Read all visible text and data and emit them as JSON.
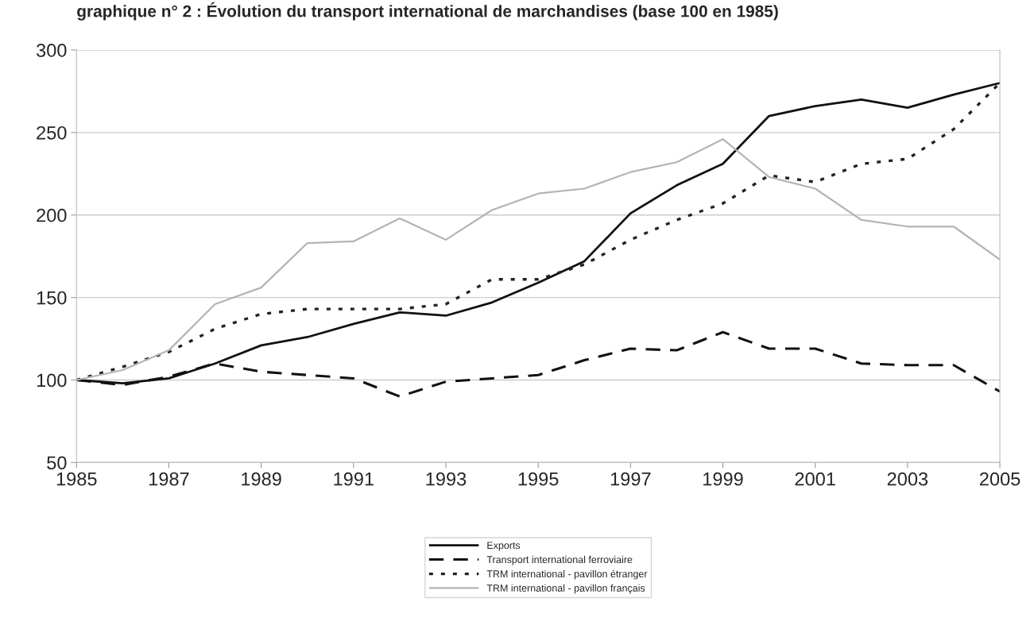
{
  "chart_data": {
    "type": "line",
    "title": "graphique n° 2 : Évolution du transport international de marchandises (base 100 en 1985)",
    "x": [
      1985,
      1986,
      1987,
      1988,
      1989,
      1990,
      1991,
      1992,
      1993,
      1994,
      1995,
      1996,
      1997,
      1998,
      1999,
      2000,
      2001,
      2002,
      2003,
      2004,
      2005
    ],
    "series": [
      {
        "name": "Exports",
        "color": "#111111",
        "line_style": "solid",
        "values": [
          100,
          98,
          101,
          110,
          121,
          126,
          134,
          141,
          139,
          147,
          159,
          172,
          201,
          218,
          231,
          260,
          266,
          270,
          265,
          273,
          280
        ]
      },
      {
        "name": "Transport international ferroviaire",
        "color": "#111111",
        "line_style": "dashed",
        "values": [
          100,
          97,
          102,
          110,
          105,
          103,
          101,
          90,
          99,
          101,
          103,
          112,
          119,
          118,
          129,
          119,
          119,
          110,
          109,
          109,
          93
        ]
      },
      {
        "name": "TRM international - pavillon étranger",
        "color": "#222222",
        "line_style": "dotted",
        "values": [
          100,
          108,
          117,
          131,
          140,
          143,
          143,
          143,
          146,
          161,
          161,
          170,
          185,
          197,
          207,
          224,
          220,
          231,
          234,
          252,
          280
        ]
      },
      {
        "name": "TRM international - pavillon français",
        "color": "#b4b4b4",
        "line_style": "solid",
        "values": [
          100,
          106,
          118,
          146,
          156,
          183,
          184,
          198,
          185,
          203,
          213,
          216,
          226,
          232,
          246,
          223,
          216,
          197,
          193,
          193,
          173
        ]
      }
    ],
    "xlim": [
      1985,
      2005
    ],
    "xticks": [
      1985,
      1987,
      1989,
      1991,
      1993,
      1995,
      1997,
      1999,
      2001,
      2003,
      2005
    ],
    "ylim": [
      50,
      300
    ],
    "yticks": [
      50,
      100,
      150,
      200,
      250,
      300
    ],
    "grid": "y",
    "legend": "bottom",
    "marker": "none"
  }
}
